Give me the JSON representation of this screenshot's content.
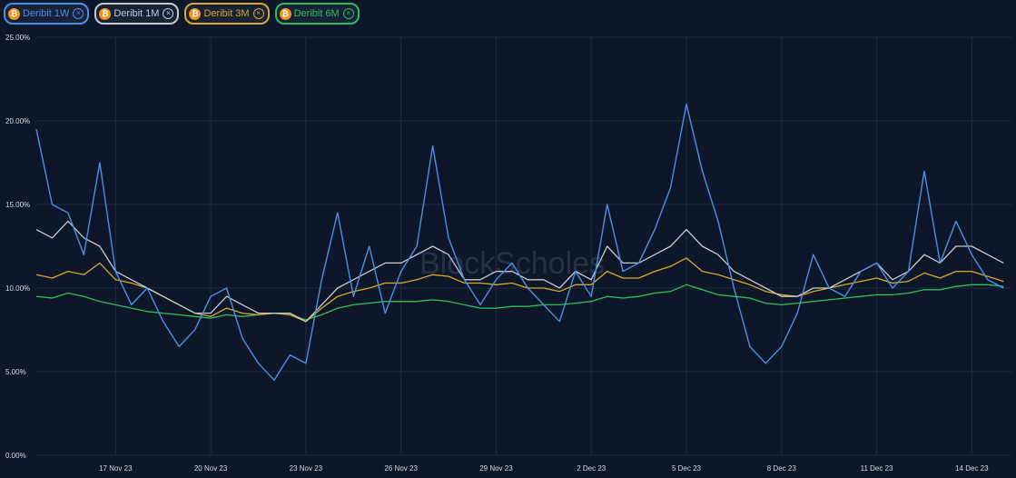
{
  "legend": [
    {
      "label": "Deribit 1W",
      "color": "#4d8fe6",
      "icon": "bitcoin-icon",
      "close_icon": "close-circle-icon",
      "close_glyph": "×",
      "coin_glyph": "₿"
    },
    {
      "label": "Deribit 1M",
      "color": "#c7c9cf",
      "icon": "bitcoin-icon",
      "close_icon": "close-circle-icon",
      "close_glyph": "×",
      "coin_glyph": "₿"
    },
    {
      "label": "Deribit 3M",
      "color": "#d8a92a",
      "icon": "bitcoin-icon",
      "close_icon": "close-circle-icon",
      "close_glyph": "×",
      "coin_glyph": "₿"
    },
    {
      "label": "Deribit 6M",
      "color": "#2fbf5a",
      "icon": "bitcoin-icon",
      "close_icon": "close-circle-icon",
      "close_glyph": "×",
      "coin_glyph": "₿"
    }
  ],
  "watermark": "BlockScholes",
  "chart_data": {
    "type": "line",
    "x_unit": "date",
    "x_range": [
      "2023-11-14T12:00",
      "2023-12-15T06:00"
    ],
    "x_ticks": [
      {
        "label": "17 Nov 23",
        "date": "2023-11-17"
      },
      {
        "label": "20 Nov 23",
        "date": "2023-11-20"
      },
      {
        "label": "23 Nov 23",
        "date": "2023-11-23"
      },
      {
        "label": "26 Nov 23",
        "date": "2023-11-26"
      },
      {
        "label": "29 Nov 23",
        "date": "2023-11-29"
      },
      {
        "label": "2 Dec 23",
        "date": "2023-12-02"
      },
      {
        "label": "5 Dec 23",
        "date": "2023-12-05"
      },
      {
        "label": "8 Dec 23",
        "date": "2023-12-08"
      },
      {
        "label": "11 Dec 23",
        "date": "2023-12-11"
      },
      {
        "label": "14 Dec 23",
        "date": "2023-12-14"
      }
    ],
    "y_ticks": [
      "0.00%",
      "5.00%",
      "10.00%",
      "15.00%",
      "20.00%",
      "25.00%"
    ],
    "y_tick_values": [
      0,
      5,
      10,
      15,
      20,
      25
    ],
    "ylim": [
      0,
      25
    ],
    "grid": true,
    "x": [
      "2023-11-14T12:00",
      "2023-11-15T00:00",
      "2023-11-15T12:00",
      "2023-11-16T00:00",
      "2023-11-16T12:00",
      "2023-11-17T00:00",
      "2023-11-17T12:00",
      "2023-11-18T00:00",
      "2023-11-18T12:00",
      "2023-11-19T00:00",
      "2023-11-19T12:00",
      "2023-11-20T00:00",
      "2023-11-20T12:00",
      "2023-11-21T00:00",
      "2023-11-21T12:00",
      "2023-11-22T00:00",
      "2023-11-22T12:00",
      "2023-11-23T00:00",
      "2023-11-23T12:00",
      "2023-11-24T00:00",
      "2023-11-24T12:00",
      "2023-11-25T00:00",
      "2023-11-25T12:00",
      "2023-11-26T00:00",
      "2023-11-26T12:00",
      "2023-11-27T00:00",
      "2023-11-27T12:00",
      "2023-11-28T00:00",
      "2023-11-28T12:00",
      "2023-11-29T00:00",
      "2023-11-29T12:00",
      "2023-11-30T00:00",
      "2023-11-30T12:00",
      "2023-12-01T00:00",
      "2023-12-01T12:00",
      "2023-12-02T00:00",
      "2023-12-02T12:00",
      "2023-12-03T00:00",
      "2023-12-03T12:00",
      "2023-12-04T00:00",
      "2023-12-04T12:00",
      "2023-12-05T00:00",
      "2023-12-05T12:00",
      "2023-12-06T00:00",
      "2023-12-06T12:00",
      "2023-12-07T00:00",
      "2023-12-07T12:00",
      "2023-12-08T00:00",
      "2023-12-08T12:00",
      "2023-12-09T00:00",
      "2023-12-09T12:00",
      "2023-12-10T00:00",
      "2023-12-10T12:00",
      "2023-12-11T00:00",
      "2023-12-11T12:00",
      "2023-12-12T00:00",
      "2023-12-12T12:00",
      "2023-12-13T00:00",
      "2023-12-13T12:00",
      "2023-12-14T00:00",
      "2023-12-14T12:00",
      "2023-12-15T00:00"
    ],
    "series": [
      {
        "name": "Deribit 1W",
        "color": "#4d8fe6",
        "values": [
          19.5,
          15.0,
          14.5,
          12.0,
          17.5,
          11.0,
          9.0,
          10.0,
          8.0,
          6.5,
          7.5,
          9.5,
          10.0,
          7.0,
          5.5,
          4.5,
          6.0,
          5.5,
          10.5,
          14.5,
          9.5,
          12.5,
          8.5,
          11.0,
          12.5,
          18.5,
          13.0,
          10.5,
          9.0,
          10.5,
          11.5,
          10.0,
          9.0,
          8.0,
          11.0,
          9.5,
          15.0,
          11.0,
          11.5,
          13.5,
          16.0,
          21.0,
          17.0,
          14.0,
          10.0,
          6.5,
          5.5,
          6.5,
          8.5,
          12.0,
          10.0,
          9.5,
          11.0,
          11.5,
          10.0,
          11.0,
          17.0,
          11.5,
          14.0,
          12.0,
          10.5,
          10.0
        ]
      },
      {
        "name": "Deribit 1M",
        "color": "#c7c9cf",
        "values": [
          13.5,
          13.0,
          14.0,
          13.0,
          12.5,
          11.0,
          10.5,
          10.0,
          9.5,
          9.0,
          8.5,
          8.5,
          9.5,
          9.0,
          8.5,
          8.5,
          8.5,
          8.0,
          9.0,
          10.0,
          10.5,
          11.0,
          11.5,
          11.5,
          12.0,
          12.5,
          12.0,
          10.5,
          10.5,
          11.0,
          11.0,
          10.5,
          10.5,
          10.0,
          11.0,
          10.5,
          12.5,
          11.5,
          11.5,
          12.0,
          12.5,
          13.5,
          12.5,
          12.0,
          11.0,
          10.5,
          10.0,
          9.5,
          9.5,
          10.0,
          10.0,
          10.5,
          11.0,
          11.5,
          10.5,
          11.0,
          12.0,
          11.5,
          12.5,
          12.5,
          12.0,
          11.5
        ]
      },
      {
        "name": "Deribit 3M",
        "color": "#d8a92a",
        "values": [
          10.8,
          10.6,
          11.0,
          10.8,
          11.5,
          10.5,
          10.3,
          10.0,
          9.5,
          9.0,
          8.5,
          8.3,
          8.8,
          8.5,
          8.4,
          8.5,
          8.4,
          8.0,
          8.8,
          9.5,
          9.8,
          10.0,
          10.3,
          10.3,
          10.5,
          10.8,
          10.7,
          10.3,
          10.3,
          10.2,
          10.3,
          10.0,
          10.0,
          9.8,
          10.2,
          10.2,
          11.0,
          10.6,
          10.6,
          11.0,
          11.3,
          11.8,
          11.0,
          10.8,
          10.5,
          10.2,
          9.8,
          9.6,
          9.5,
          9.8,
          10.0,
          10.2,
          10.4,
          10.6,
          10.3,
          10.4,
          10.9,
          10.6,
          11.0,
          11.0,
          10.7,
          10.4
        ]
      },
      {
        "name": "Deribit 6M",
        "color": "#2fbf5a",
        "values": [
          9.5,
          9.4,
          9.7,
          9.5,
          9.2,
          9.0,
          8.8,
          8.6,
          8.5,
          8.4,
          8.3,
          8.2,
          8.4,
          8.3,
          8.4,
          8.5,
          8.4,
          8.1,
          8.4,
          8.8,
          9.0,
          9.1,
          9.2,
          9.2,
          9.2,
          9.3,
          9.2,
          9.0,
          8.8,
          8.8,
          8.9,
          8.9,
          9.0,
          9.0,
          9.1,
          9.2,
          9.5,
          9.4,
          9.5,
          9.7,
          9.8,
          10.2,
          9.9,
          9.6,
          9.5,
          9.4,
          9.1,
          9.0,
          9.1,
          9.2,
          9.3,
          9.4,
          9.5,
          9.6,
          9.6,
          9.7,
          9.9,
          9.9,
          10.1,
          10.2,
          10.2,
          10.1
        ]
      }
    ]
  }
}
